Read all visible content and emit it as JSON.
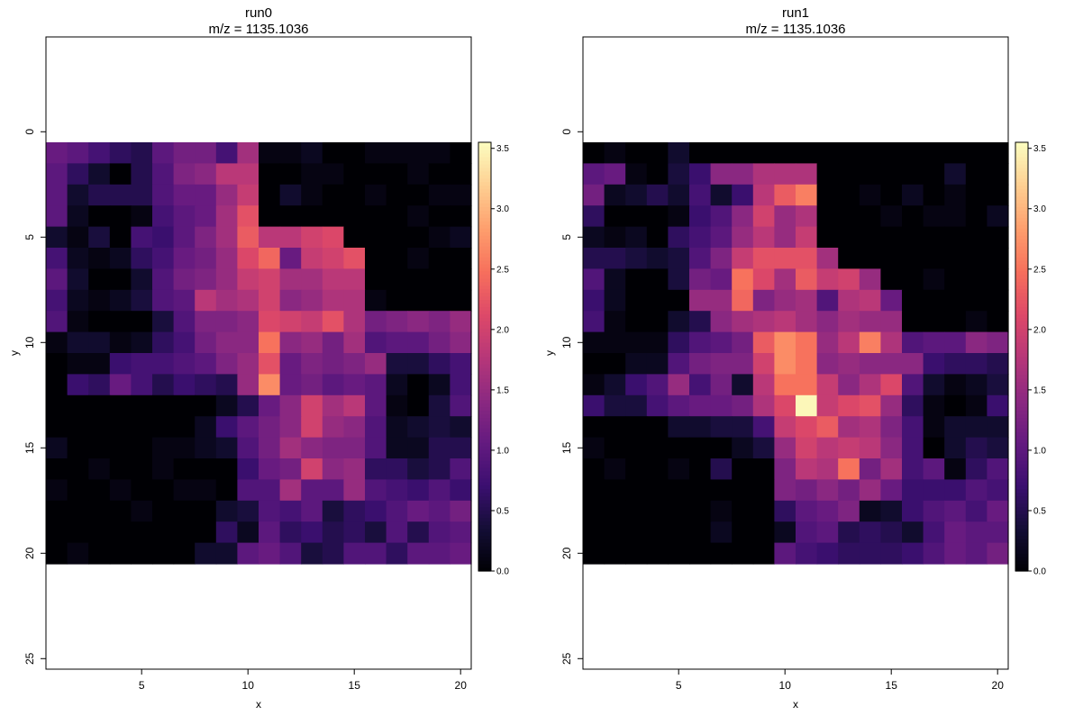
{
  "chart_data": [
    {
      "type": "heatmap",
      "title": "run0",
      "subtitle": "m/z = 1135.1036",
      "xlabel": "x",
      "ylabel": "y",
      "xlim": [
        0.5,
        20.5
      ],
      "ylim": [
        25.5,
        -4.5
      ],
      "y_axis_reversed": true,
      "x_ticks": [
        5,
        10,
        15,
        20
      ],
      "y_ticks": [
        0,
        5,
        10,
        15,
        20,
        25
      ],
      "colorbar": {
        "range": [
          0.0,
          3.55
        ],
        "ticks": [
          "0.0",
          "0.5",
          "1.0",
          "1.5",
          "2.0",
          "2.5",
          "3.0",
          "3.5"
        ],
        "colormap": "magma"
      },
      "x": [
        1,
        2,
        3,
        4,
        5,
        6,
        7,
        8,
        9,
        10,
        11,
        12,
        13,
        14,
        15,
        16,
        17,
        18,
        19,
        20
      ],
      "y": [
        1,
        2,
        3,
        4,
        5,
        6,
        7,
        8,
        9,
        10,
        11,
        12,
        13,
        14,
        15,
        16,
        17,
        18,
        19,
        20
      ],
      "z": [
        [
          1.1,
          1.0,
          0.8,
          0.6,
          0.5,
          1.0,
          1.2,
          1.2,
          0.8,
          1.6,
          0.1,
          0.1,
          0.2,
          0.0,
          0.0,
          0.1,
          0.1,
          0.1,
          0.1,
          0.0
        ],
        [
          1.0,
          0.6,
          0.3,
          0.0,
          0.5,
          0.9,
          1.3,
          1.4,
          1.8,
          1.8,
          0.0,
          0.0,
          0.1,
          0.1,
          0.0,
          0.0,
          0.0,
          0.1,
          0.0,
          0.0
        ],
        [
          1.0,
          0.3,
          0.5,
          0.5,
          0.5,
          0.9,
          1.1,
          1.1,
          1.5,
          1.9,
          0.0,
          0.3,
          0.1,
          0.0,
          0.0,
          0.1,
          0.0,
          0.0,
          0.1,
          0.1
        ],
        [
          1.0,
          0.2,
          0.0,
          0.0,
          0.1,
          0.8,
          1.0,
          1.1,
          1.6,
          2.2,
          0.0,
          0.0,
          0.0,
          0.0,
          0.0,
          0.0,
          0.0,
          0.1,
          0.0,
          0.0
        ],
        [
          0.3,
          0.1,
          0.4,
          0.0,
          0.8,
          0.7,
          1.0,
          1.3,
          1.6,
          2.3,
          1.8,
          1.8,
          2.0,
          2.1,
          0.0,
          0.0,
          0.0,
          0.0,
          0.1,
          0.2
        ],
        [
          0.8,
          0.2,
          0.1,
          0.2,
          0.6,
          0.8,
          1.1,
          1.2,
          1.5,
          2.1,
          2.4,
          1.1,
          1.9,
          2.0,
          2.2,
          0.0,
          0.0,
          0.1,
          0.0,
          0.0
        ],
        [
          1.0,
          0.3,
          0.0,
          0.0,
          0.3,
          0.9,
          1.2,
          1.3,
          1.5,
          1.9,
          2.0,
          1.6,
          1.6,
          1.8,
          1.8,
          0.0,
          0.0,
          0.0,
          0.0,
          0.0
        ],
        [
          0.8,
          0.2,
          0.1,
          0.2,
          0.4,
          0.9,
          1.0,
          1.8,
          1.6,
          1.7,
          2.0,
          1.4,
          1.5,
          1.7,
          1.7,
          0.1,
          0.0,
          0.0,
          0.0,
          0.0
        ],
        [
          0.9,
          0.1,
          0.0,
          0.0,
          0.0,
          0.4,
          0.9,
          1.3,
          1.3,
          1.4,
          2.1,
          2.0,
          1.9,
          2.2,
          1.7,
          1.2,
          1.3,
          1.4,
          1.3,
          1.5
        ],
        [
          0.1,
          0.3,
          0.3,
          0.1,
          0.2,
          0.6,
          0.8,
          1.2,
          1.4,
          1.4,
          2.5,
          1.4,
          1.5,
          1.2,
          1.6,
          0.9,
          1.0,
          1.0,
          1.2,
          1.4
        ],
        [
          0.0,
          0.1,
          0.1,
          0.7,
          0.8,
          0.8,
          0.9,
          1.0,
          1.3,
          1.5,
          2.2,
          1.1,
          1.3,
          1.2,
          1.3,
          1.5,
          0.4,
          0.4,
          0.6,
          0.8
        ],
        [
          0.0,
          0.7,
          0.6,
          1.1,
          0.8,
          0.5,
          0.7,
          0.6,
          0.5,
          1.5,
          2.7,
          1.1,
          1.2,
          1.0,
          1.1,
          1.0,
          0.2,
          0.0,
          0.2,
          0.8
        ],
        [
          0.0,
          0.0,
          0.0,
          0.0,
          0.0,
          0.0,
          0.0,
          0.0,
          0.2,
          0.5,
          1.1,
          1.4,
          2.0,
          1.6,
          1.8,
          1.0,
          0.1,
          0.0,
          0.4,
          0.9
        ],
        [
          0.0,
          0.0,
          0.0,
          0.0,
          0.0,
          0.0,
          0.0,
          0.2,
          0.7,
          1.0,
          1.2,
          1.4,
          2.0,
          1.5,
          1.4,
          0.9,
          0.2,
          0.3,
          0.4,
          0.3
        ],
        [
          0.2,
          0.0,
          0.0,
          0.0,
          0.0,
          0.1,
          0.1,
          0.2,
          0.3,
          0.9,
          1.2,
          1.6,
          1.4,
          1.3,
          1.3,
          0.9,
          0.2,
          0.2,
          0.5,
          0.5
        ],
        [
          0.0,
          0.0,
          0.1,
          0.0,
          0.0,
          0.1,
          0.0,
          0.0,
          0.0,
          0.7,
          1.1,
          1.2,
          2.0,
          1.4,
          1.5,
          0.6,
          0.6,
          0.4,
          0.5,
          0.9
        ],
        [
          0.1,
          0.0,
          0.0,
          0.1,
          0.0,
          0.0,
          0.1,
          0.1,
          0.0,
          0.9,
          0.9,
          1.6,
          1.0,
          1.0,
          1.5,
          0.9,
          0.8,
          0.7,
          0.9,
          0.7
        ],
        [
          0.0,
          0.0,
          0.0,
          0.0,
          0.1,
          0.0,
          0.0,
          0.0,
          0.3,
          0.4,
          0.9,
          0.8,
          1.0,
          0.4,
          0.6,
          0.7,
          0.9,
          1.1,
          1.0,
          1.2
        ],
        [
          0.0,
          0.0,
          0.0,
          0.0,
          0.0,
          0.0,
          0.0,
          0.0,
          0.6,
          0.2,
          1.0,
          0.6,
          0.7,
          0.5,
          0.6,
          0.4,
          0.9,
          0.5,
          0.9,
          1.0
        ],
        [
          0.0,
          0.1,
          0.0,
          0.0,
          0.0,
          0.0,
          0.0,
          0.3,
          0.3,
          1.0,
          1.1,
          0.9,
          0.4,
          0.5,
          0.9,
          0.9,
          0.6,
          1.0,
          1.0,
          1.1
        ]
      ]
    },
    {
      "type": "heatmap",
      "title": "run1",
      "subtitle": "m/z = 1135.1036",
      "xlabel": "x",
      "ylabel": "y",
      "xlim": [
        0.5,
        20.5
      ],
      "ylim": [
        25.5,
        -4.5
      ],
      "y_axis_reversed": true,
      "x_ticks": [
        5,
        10,
        15,
        20
      ],
      "y_ticks": [
        0,
        5,
        10,
        15,
        20,
        25
      ],
      "colorbar": {
        "range": [
          0.0,
          3.55
        ],
        "ticks": [
          "0.0",
          "0.5",
          "1.0",
          "1.5",
          "2.0",
          "2.5",
          "3.0",
          "3.5"
        ],
        "colormap": "magma"
      },
      "x": [
        1,
        2,
        3,
        4,
        5,
        6,
        7,
        8,
        9,
        10,
        11,
        12,
        13,
        14,
        15,
        16,
        17,
        18,
        19,
        20
      ],
      "y": [
        1,
        2,
        3,
        4,
        5,
        6,
        7,
        8,
        9,
        10,
        11,
        12,
        13,
        14,
        15,
        16,
        17,
        18,
        19,
        20
      ],
      "z": [
        [
          0.0,
          0.1,
          0.0,
          0.0,
          0.3,
          0.0,
          0.0,
          0.0,
          0.0,
          0.0,
          0.0,
          0.0,
          0.0,
          0.0,
          0.0,
          0.0,
          0.0,
          0.0,
          0.0,
          0.0
        ],
        [
          1.0,
          1.1,
          0.1,
          0.0,
          0.4,
          0.7,
          1.4,
          1.4,
          1.7,
          1.7,
          1.7,
          0.0,
          0.0,
          0.0,
          0.0,
          0.0,
          0.0,
          0.3,
          0.0,
          0.0
        ],
        [
          1.2,
          0.2,
          0.3,
          0.5,
          0.3,
          0.8,
          0.3,
          0.7,
          1.8,
          2.3,
          2.6,
          0.0,
          0.0,
          0.1,
          0.0,
          0.2,
          0.0,
          0.1,
          0.0,
          0.0
        ],
        [
          0.6,
          0.0,
          0.0,
          0.0,
          0.1,
          0.7,
          0.9,
          1.4,
          2.0,
          1.5,
          1.7,
          0.0,
          0.0,
          0.0,
          0.1,
          0.0,
          0.1,
          0.1,
          0.0,
          0.2
        ],
        [
          0.2,
          0.1,
          0.2,
          0.0,
          0.6,
          0.8,
          1.0,
          1.5,
          1.8,
          1.5,
          1.9,
          0.0,
          0.0,
          0.0,
          0.0,
          0.0,
          0.0,
          0.0,
          0.0,
          0.0
        ],
        [
          0.5,
          0.5,
          0.4,
          0.3,
          0.4,
          0.9,
          1.3,
          1.9,
          2.2,
          2.2,
          2.2,
          1.6,
          0.0,
          0.0,
          0.0,
          0.0,
          0.0,
          0.0,
          0.0,
          0.0
        ],
        [
          0.9,
          0.2,
          0.0,
          0.0,
          0.4,
          1.2,
          1.1,
          2.5,
          2.1,
          1.6,
          2.3,
          1.9,
          2.0,
          1.5,
          0.0,
          0.0,
          0.1,
          0.0,
          0.0,
          0.0
        ],
        [
          0.7,
          0.2,
          0.0,
          0.0,
          0.0,
          1.5,
          1.5,
          2.4,
          1.3,
          1.5,
          1.6,
          0.9,
          1.7,
          1.8,
          1.1,
          0.0,
          0.0,
          0.0,
          0.0,
          0.0
        ],
        [
          0.8,
          0.1,
          0.0,
          0.0,
          0.3,
          0.5,
          1.4,
          1.6,
          1.7,
          1.8,
          1.6,
          1.4,
          1.6,
          1.5,
          1.5,
          0.0,
          0.0,
          0.0,
          0.1,
          0.0
        ],
        [
          0.1,
          0.1,
          0.1,
          0.1,
          0.6,
          0.9,
          1.0,
          1.2,
          2.3,
          2.7,
          2.5,
          1.5,
          1.8,
          2.6,
          1.7,
          0.9,
          1.0,
          1.0,
          1.4,
          1.3
        ],
        [
          0.0,
          0.0,
          0.2,
          0.2,
          0.9,
          1.2,
          1.3,
          1.3,
          2.0,
          2.7,
          2.5,
          1.4,
          1.5,
          1.4,
          1.4,
          1.4,
          0.7,
          0.6,
          0.6,
          0.5
        ],
        [
          0.1,
          0.3,
          0.7,
          0.9,
          1.5,
          0.8,
          1.2,
          0.3,
          1.8,
          2.5,
          2.5,
          1.9,
          1.4,
          1.7,
          2.1,
          0.9,
          0.3,
          0.1,
          0.2,
          0.4
        ],
        [
          0.7,
          0.4,
          0.4,
          0.8,
          1.0,
          1.1,
          1.1,
          1.2,
          1.7,
          2.1,
          3.5,
          1.9,
          2.1,
          2.2,
          1.5,
          0.6,
          0.1,
          0.0,
          0.1,
          0.7
        ],
        [
          0.0,
          0.0,
          0.0,
          0.0,
          0.3,
          0.3,
          0.4,
          0.4,
          0.8,
          1.9,
          2.1,
          2.3,
          1.6,
          1.7,
          1.3,
          0.8,
          0.1,
          0.3,
          0.3,
          0.3
        ],
        [
          0.1,
          0.0,
          0.0,
          0.0,
          0.0,
          0.0,
          0.0,
          0.2,
          0.4,
          1.5,
          2.0,
          1.8,
          1.9,
          1.8,
          1.4,
          0.8,
          0.0,
          0.3,
          0.5,
          0.4
        ],
        [
          0.0,
          0.1,
          0.0,
          0.0,
          0.1,
          0.0,
          0.5,
          0.0,
          0.0,
          1.3,
          1.8,
          1.7,
          2.5,
          1.2,
          1.6,
          0.8,
          1.0,
          0.1,
          0.6,
          0.9
        ],
        [
          0.0,
          0.0,
          0.0,
          0.0,
          0.0,
          0.0,
          0.0,
          0.0,
          0.0,
          1.3,
          1.2,
          1.4,
          1.2,
          1.5,
          1.1,
          0.7,
          0.7,
          0.7,
          0.9,
          0.8
        ],
        [
          0.0,
          0.0,
          0.0,
          0.0,
          0.0,
          0.0,
          0.1,
          0.0,
          0.0,
          0.6,
          1.0,
          1.1,
          1.3,
          0.2,
          0.3,
          0.7,
          0.9,
          1.0,
          0.8,
          1.1
        ],
        [
          0.0,
          0.0,
          0.0,
          0.0,
          0.0,
          0.0,
          0.2,
          0.0,
          0.0,
          0.2,
          0.9,
          1.0,
          0.5,
          0.6,
          0.5,
          0.3,
          0.8,
          1.1,
          1.0,
          1.0
        ],
        [
          0.0,
          0.0,
          0.0,
          0.0,
          0.0,
          0.0,
          0.0,
          0.0,
          0.0,
          1.0,
          0.8,
          0.7,
          0.6,
          0.6,
          0.6,
          0.7,
          0.9,
          1.1,
          1.0,
          1.2
        ]
      ]
    }
  ]
}
